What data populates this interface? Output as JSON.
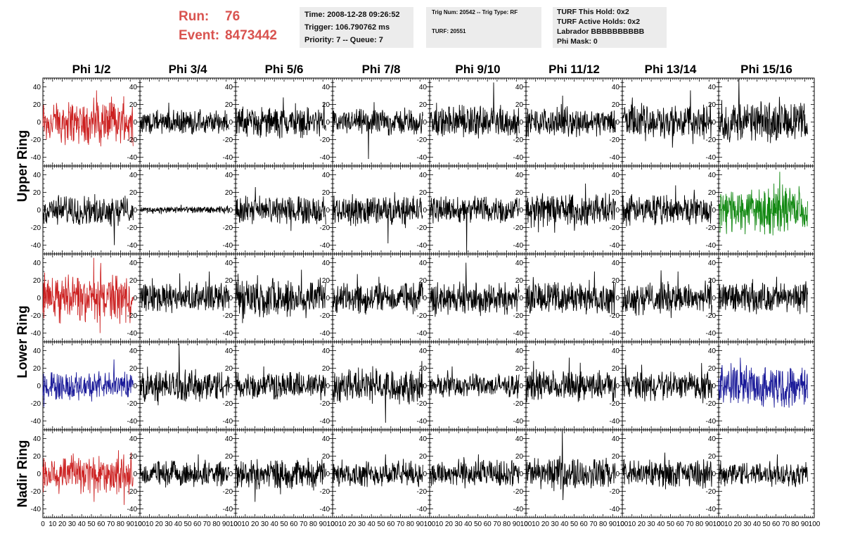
{
  "header": {
    "run_label": "Run:",
    "run_value": "76",
    "event_label": "Event:",
    "event_value": "8473442",
    "time": "Time: 2008-12-28 09:26:52",
    "trigger": "Trigger: 106.790762 ms",
    "priority": "Priority: 7 -- Queue: 7",
    "trig_num": "Trig Num: 20542 -- Trig Type: RF",
    "turf": "TURF: 20551",
    "turf_this_hold": "TURF This Hold: 0x2",
    "turf_active_holds": "TURF Active Holds: 0x2",
    "labrador": "Labrador BBBBBBBBBB",
    "phi_mask": "Phi Mask: 0"
  },
  "chart_data": {
    "type": "line",
    "columns": [
      "Phi 1/2",
      "Phi 3/4",
      "Phi 5/6",
      "Phi 7/8",
      "Phi 9/10",
      "Phi 11/12",
      "Phi 13/14",
      "Phi 15/16"
    ],
    "ring_labels": [
      "Upper Ring",
      "Lower Ring",
      "Nadir Ring"
    ],
    "xlim": [
      0,
      100
    ],
    "ylim": [
      -50,
      50
    ],
    "x_ticks": [
      "0",
      "10",
      "20",
      "30",
      "40",
      "50",
      "60",
      "70",
      "80",
      "90",
      "100"
    ],
    "y_ticks": [
      "40",
      "20",
      "0",
      "-20",
      "-40"
    ],
    "points_per_trace": 260,
    "colors": {
      "default": "#000000",
      "red": "#cc2222",
      "blue": "#1a1a99",
      "green": "#118811"
    },
    "panels": [
      [
        {
          "color": "red",
          "amp": 20,
          "spike": 36
        },
        {
          "color": "default",
          "amp": 10,
          "spike": 22
        },
        {
          "color": "default",
          "amp": 13,
          "spike": 28
        },
        {
          "color": "default",
          "amp": 11,
          "spike": -42
        },
        {
          "color": "default",
          "amp": 14,
          "spike": 45
        },
        {
          "color": "default",
          "amp": 12,
          "spike": 30
        },
        {
          "color": "default",
          "amp": 16,
          "spike": 36
        },
        {
          "color": "default",
          "amp": 17,
          "spike": 46
        }
      ],
      [
        {
          "color": "default",
          "amp": 13,
          "spike": -40
        },
        {
          "color": "default",
          "amp": 3,
          "spike": 6
        },
        {
          "color": "default",
          "amp": 12,
          "spike": 26
        },
        {
          "color": "default",
          "amp": 13,
          "spike": -38
        },
        {
          "color": "default",
          "amp": 12,
          "spike": -58
        },
        {
          "color": "default",
          "amp": 14,
          "spike": 30
        },
        {
          "color": "default",
          "amp": 13,
          "spike": 28
        },
        {
          "color": "green",
          "amp": 20,
          "spike": 30
        }
      ],
      [
        {
          "color": "red",
          "amp": 20,
          "spike": -40
        },
        {
          "color": "default",
          "amp": 13,
          "spike": 30
        },
        {
          "color": "default",
          "amp": 18,
          "spike": 32
        },
        {
          "color": "default",
          "amp": 13,
          "spike": 24
        },
        {
          "color": "default",
          "amp": 14,
          "spike": 40
        },
        {
          "color": "default",
          "amp": 14,
          "spike": 30
        },
        {
          "color": "default",
          "amp": 14,
          "spike": 30
        },
        {
          "color": "default",
          "amp": 13,
          "spike": 24
        }
      ],
      [
        {
          "color": "blue",
          "amp": 12,
          "spike": 30
        },
        {
          "color": "default",
          "amp": 14,
          "spike": 30
        },
        {
          "color": "default",
          "amp": 12,
          "spike": 22
        },
        {
          "color": "default",
          "amp": 15,
          "spike": -42
        },
        {
          "color": "default",
          "amp": 10,
          "spike": 22
        },
        {
          "color": "default",
          "amp": 13,
          "spike": 32
        },
        {
          "color": "default",
          "amp": 12,
          "spike": 24
        },
        {
          "color": "blue",
          "amp": 18,
          "spike": 32
        }
      ],
      [
        {
          "color": "red",
          "amp": 18,
          "spike": -32
        },
        {
          "color": "default",
          "amp": 11,
          "spike": 22
        },
        {
          "color": "default",
          "amp": 13,
          "spike": -32
        },
        {
          "color": "default",
          "amp": 11,
          "spike": 22
        },
        {
          "color": "default",
          "amp": 12,
          "spike": 22
        },
        {
          "color": "default",
          "amp": 14,
          "spike": 36
        },
        {
          "color": "default",
          "amp": 12,
          "spike": 24
        },
        {
          "color": "default",
          "amp": 11,
          "spike": 22
        }
      ]
    ]
  }
}
